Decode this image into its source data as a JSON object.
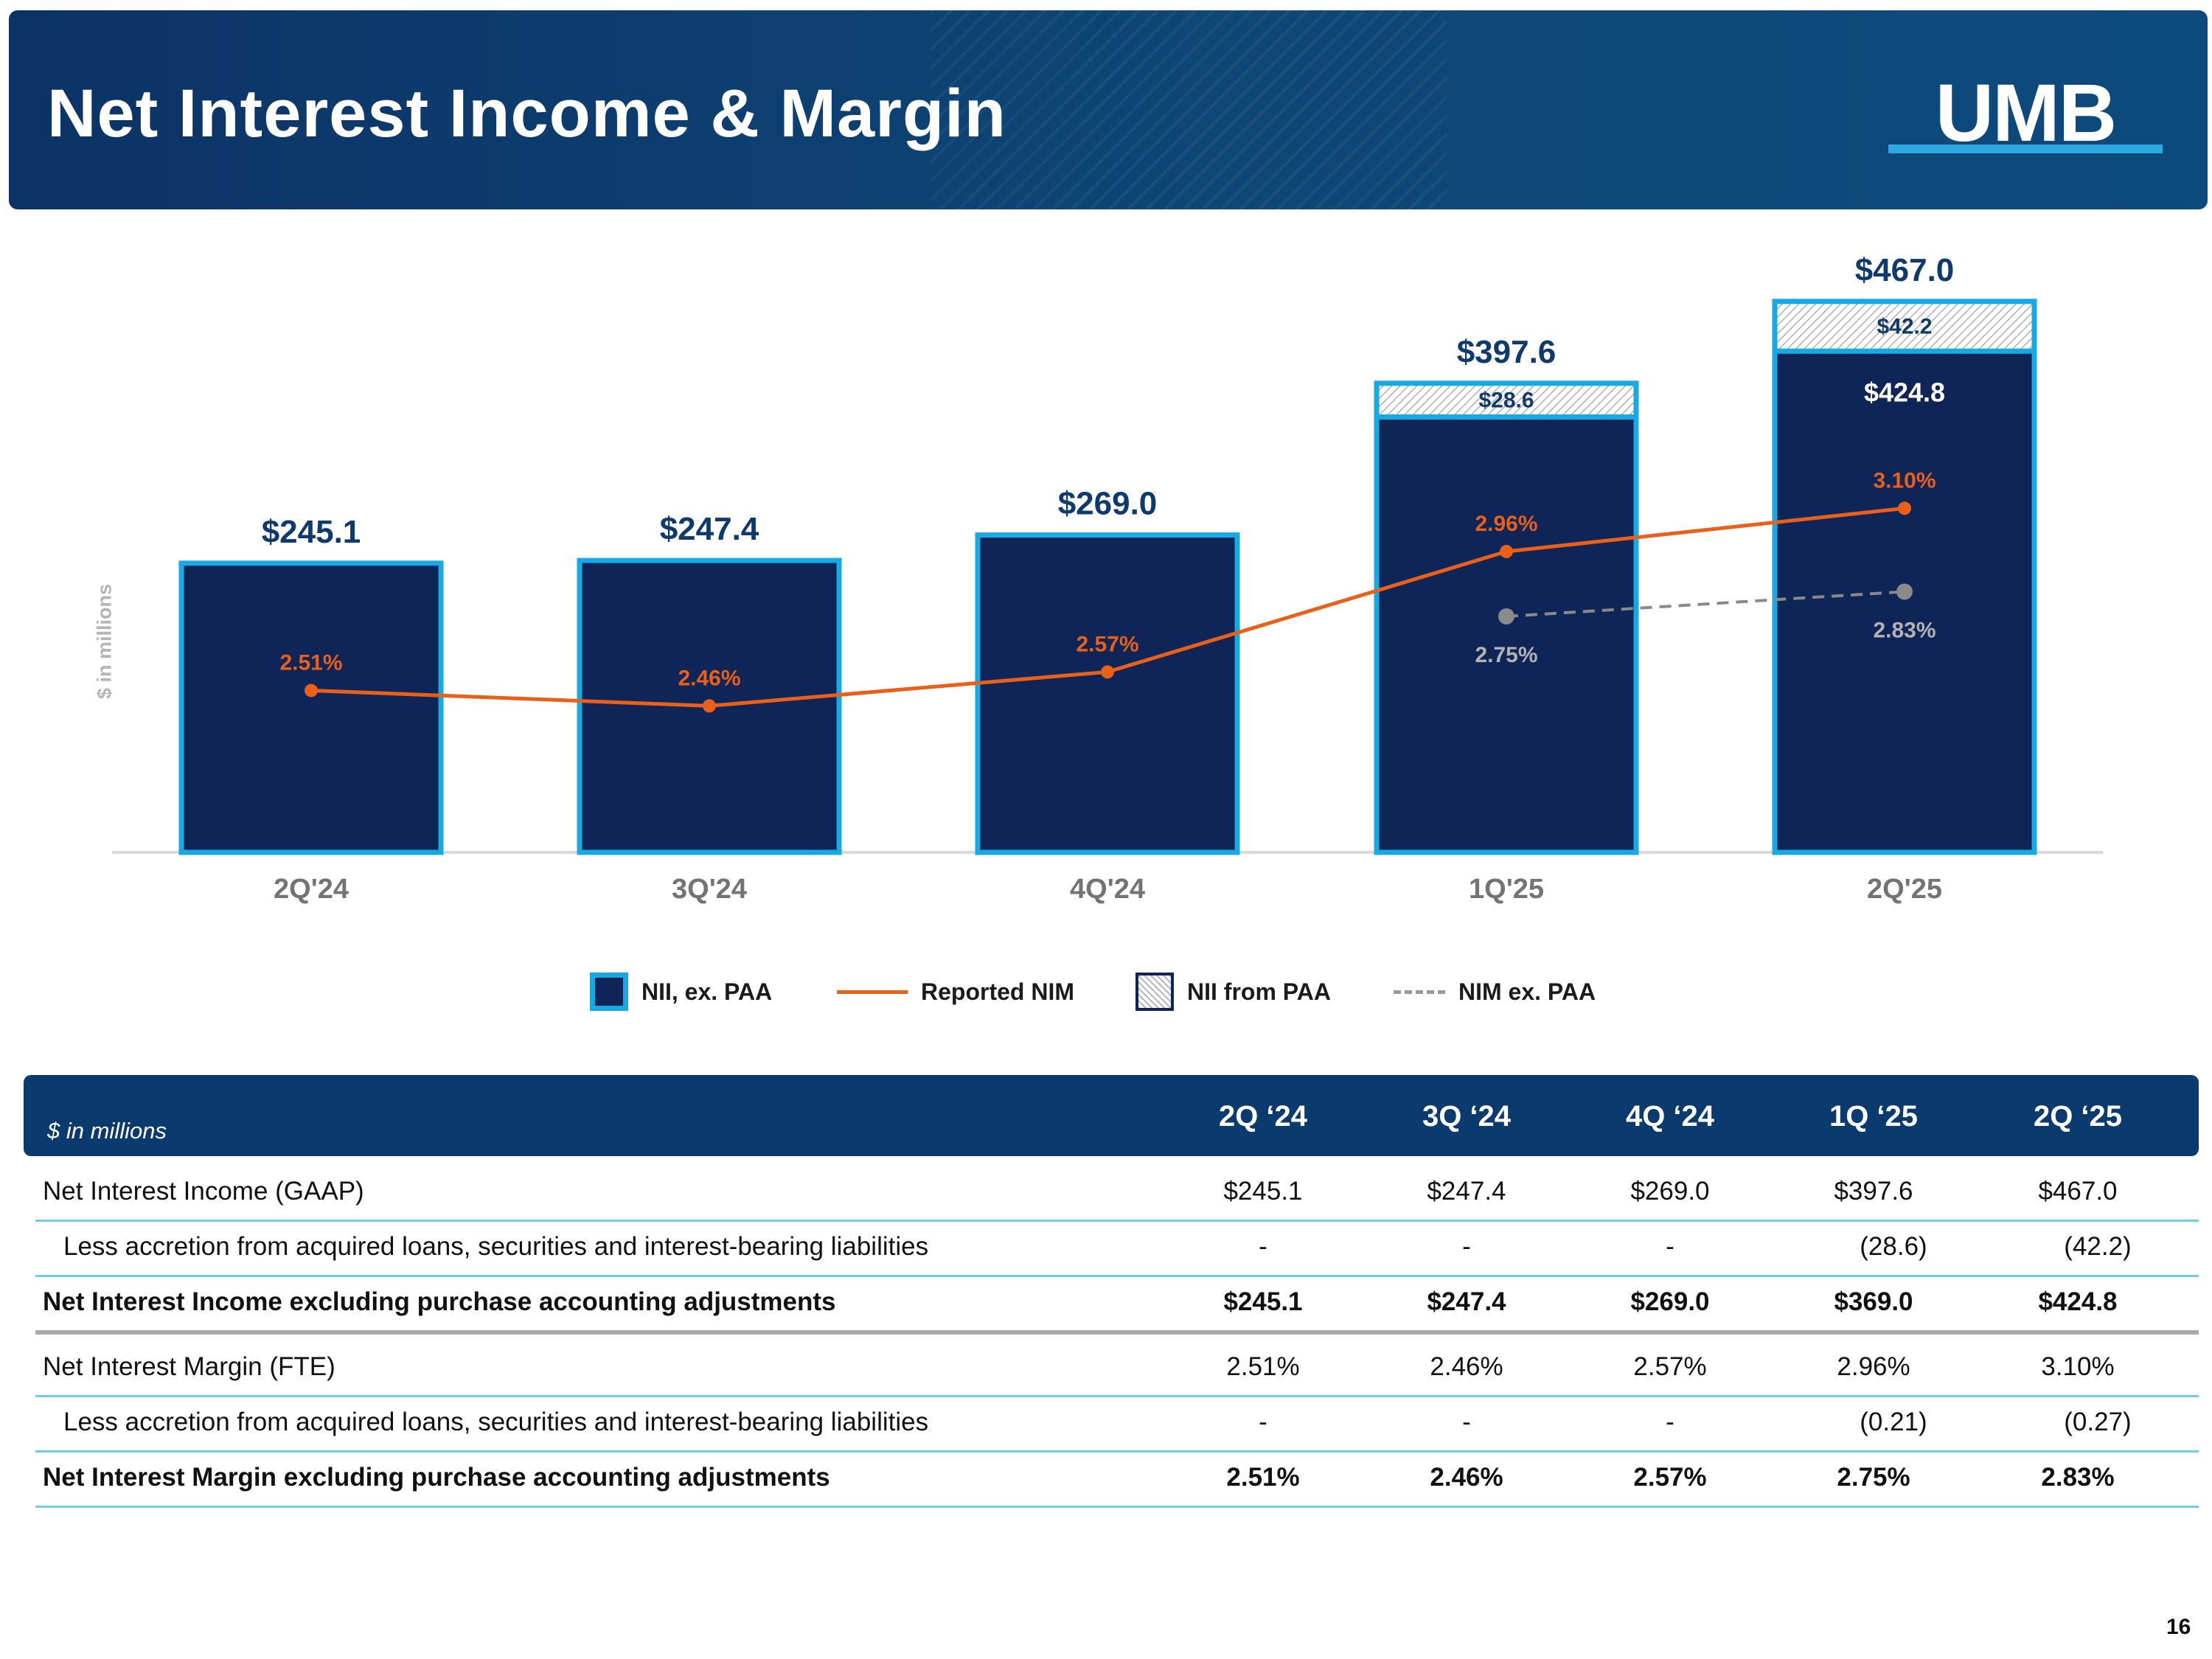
{
  "header": {
    "title": "Net Interest Income & Margin",
    "logo_text": "UMB"
  },
  "chart_data": {
    "type": "bar",
    "ylabel": "$ in millions",
    "categories": [
      "2Q'24",
      "3Q'24",
      "4Q'24",
      "1Q'25",
      "2Q'25"
    ],
    "ylim": [
      0,
      500
    ],
    "series": [
      {
        "name": "NII, ex. PAA",
        "kind": "bar",
        "values": [
          245.1,
          247.4,
          269.0,
          369.0,
          424.8
        ],
        "labels": [
          "",
          "",
          "",
          "",
          "$424.8"
        ]
      },
      {
        "name": "NII from PAA",
        "kind": "bar-stacked",
        "values": [
          0,
          0,
          0,
          28.6,
          42.2
        ],
        "labels": [
          "",
          "",
          "",
          "$28.6",
          "$42.2"
        ]
      },
      {
        "name": "Reported NIM",
        "kind": "line",
        "values": [
          2.51,
          2.46,
          2.57,
          2.96,
          3.1
        ],
        "labels": [
          "2.51%",
          "2.46%",
          "2.57%",
          "2.96%",
          "3.10%"
        ]
      },
      {
        "name": "NIM ex. PAA",
        "kind": "line-dashed",
        "values": [
          null,
          null,
          null,
          2.75,
          2.83
        ],
        "labels": [
          "",
          "",
          "",
          "2.75%",
          "2.83%"
        ]
      }
    ],
    "totals": [
      "$245.1",
      "$247.4",
      "$269.0",
      "$397.6",
      "$467.0"
    ],
    "nim_range": [
      2.0,
      3.6
    ],
    "colors": {
      "bar_fill": "#0f2457",
      "bar_border": "#17a9e1",
      "nim_line": "#e8601a",
      "nim_ex_paa": "#8a8a8a",
      "total_label": "#0f3a6e",
      "axis_label": "#737373"
    }
  },
  "legend": {
    "items": [
      "NII, ex. PAA",
      "Reported NIM",
      "NII from PAA",
      "NIM ex. PAA"
    ]
  },
  "table": {
    "unit_label": "$ in millions",
    "columns": [
      "2Q ‘24",
      "3Q ‘24",
      "4Q ‘24",
      "1Q ‘25",
      "2Q ‘25"
    ],
    "rows": [
      {
        "label": "Net Interest Income (GAAP)",
        "values": [
          "$245.1",
          "$247.4",
          "$269.0",
          "$397.6",
          "$467.0"
        ]
      },
      {
        "label": "Less accretion from acquired loans, securities and interest-bearing liabilities",
        "values": [
          "-",
          "-",
          "-",
          "(28.6)",
          "(42.2)"
        ]
      },
      {
        "label": "Net Interest Income excluding purchase accounting adjustments",
        "values": [
          "$245.1",
          "$247.4",
          "$269.0",
          "$369.0",
          "$424.8"
        ]
      },
      {
        "label": "Net Interest Margin (FTE)",
        "values": [
          "2.51%",
          "2.46%",
          "2.57%",
          "2.96%",
          "3.10%"
        ]
      },
      {
        "label": "Less accretion from acquired loans, securities and interest-bearing liabilities",
        "values": [
          "-",
          "-",
          "-",
          "(0.21)",
          "(0.27)"
        ]
      },
      {
        "label": "Net Interest Margin excluding purchase accounting adjustments",
        "values": [
          "2.51%",
          "2.46%",
          "2.57%",
          "2.75%",
          "2.83%"
        ]
      }
    ]
  },
  "page_number": "16"
}
